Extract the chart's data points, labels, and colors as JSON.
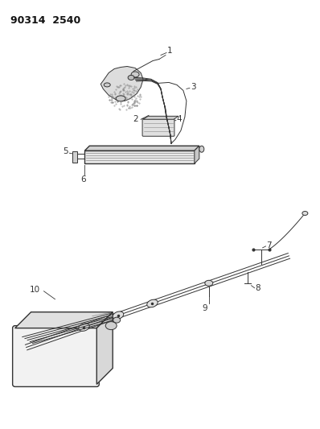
{
  "title": "90314  2540",
  "background_color": "#ffffff",
  "line_color": "#333333",
  "label_color": "#111111",
  "fig_width": 3.98,
  "fig_height": 5.33,
  "dpi": 100
}
